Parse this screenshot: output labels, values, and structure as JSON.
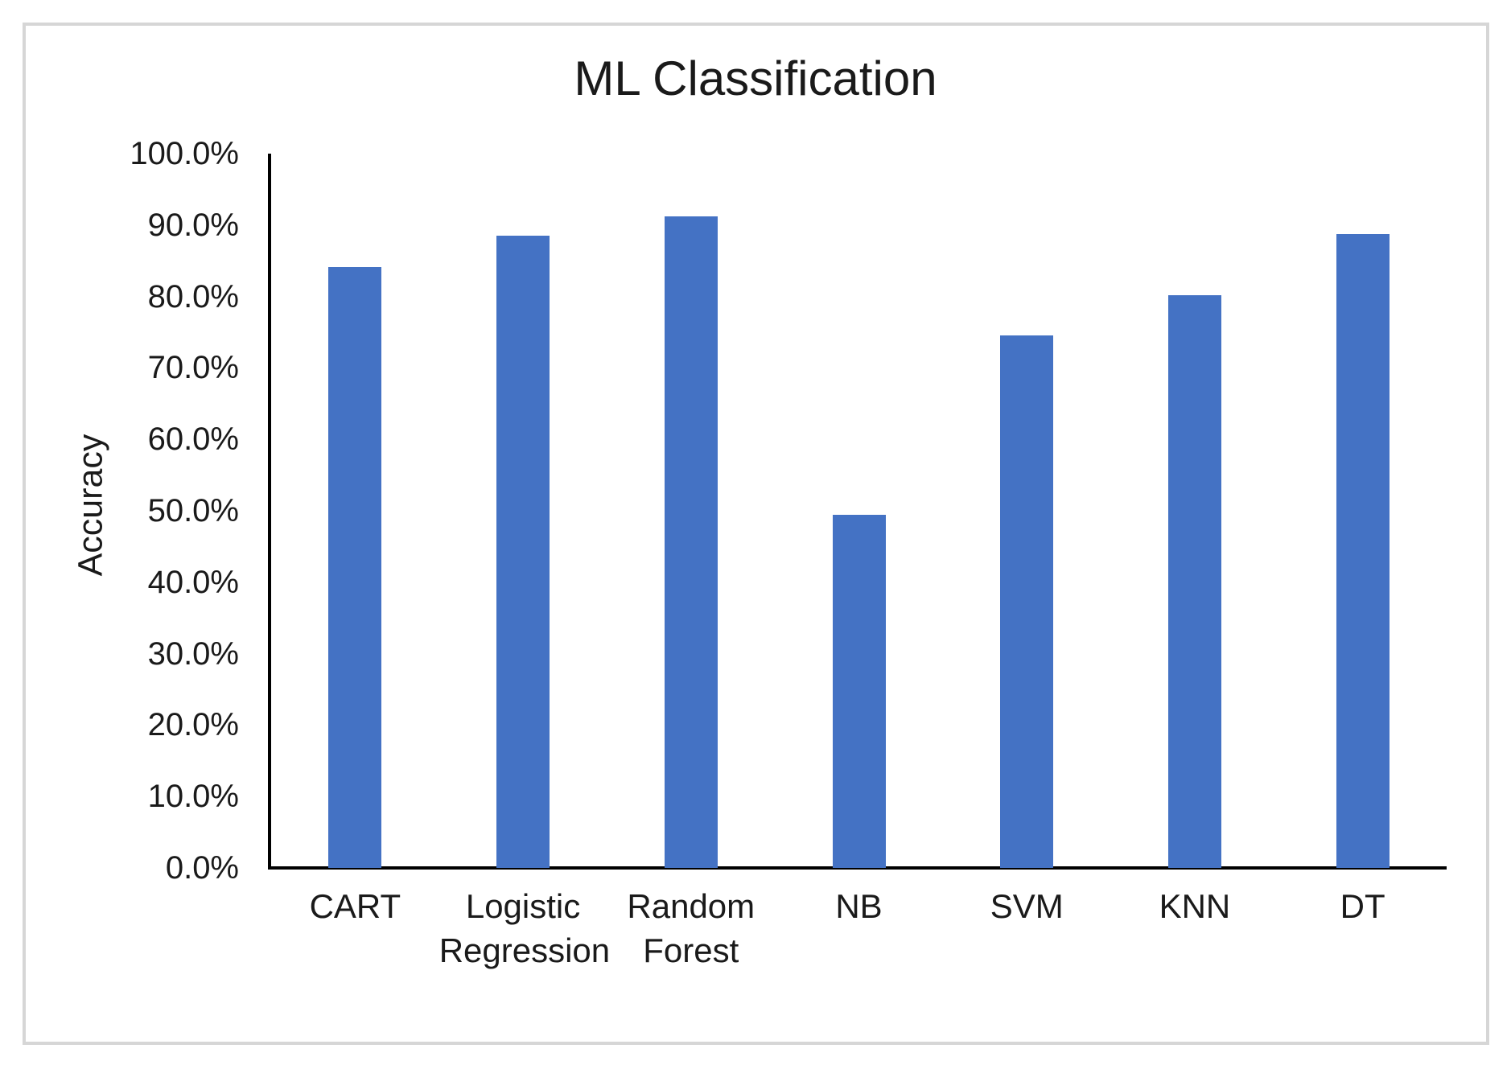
{
  "page": {
    "background": "#FFFFFF"
  },
  "frame": {
    "border_color": "#D6D6D6"
  },
  "chart_data": {
    "type": "bar",
    "title": "ML Classification",
    "ylabel": "Accuracy",
    "xlabel": "",
    "categories": [
      "CART",
      "Logistic Regression",
      "Random Forest",
      "NB",
      "SVM",
      "KNN",
      "DT"
    ],
    "values": [
      84.1,
      88.5,
      91.2,
      49.4,
      74.5,
      80.2,
      88.7
    ],
    "value_unit": "percent",
    "ylim": [
      0,
      100
    ],
    "ytick_step": 10,
    "ytick_labels": [
      "0.0%",
      "10.0%",
      "20.0%",
      "30.0%",
      "40.0%",
      "50.0%",
      "60.0%",
      "70.0%",
      "80.0%",
      "90.0%",
      "100.0%"
    ],
    "grid": false,
    "legend_position": "none",
    "bar_color": "#4472C4",
    "axis_line_color": "#000000",
    "text_color": "#1A1A1A"
  }
}
